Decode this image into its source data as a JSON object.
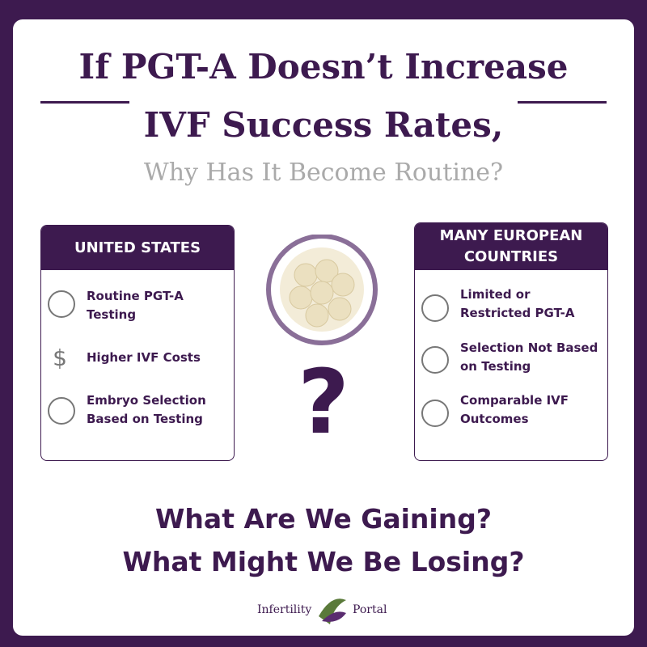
{
  "header": {
    "title_line1": "If PGT-A Doesn’t Increase",
    "title_line2": "IVF Success Rates,",
    "subtitle": "Why Has It Become Routine?"
  },
  "left_panel": {
    "heading": "UNITED STATES",
    "items": [
      "Routine PGT-A Testing",
      "Higher IVF Costs",
      "Embryo Selection Based on Testing"
    ]
  },
  "right_panel": {
    "heading": "MANY EUROPEAN COUNTRIES",
    "items": [
      "Limited or Restricted PGT-A",
      "Selection Not Based on Testing",
      "Comparable IVF Outcomes"
    ]
  },
  "center": {
    "symbol": "?"
  },
  "questions": [
    "What Are We Gaining?",
    "What Might We Be Losing?"
  ],
  "footer": {
    "brand_left": "Infertility",
    "brand_right": "Portal"
  }
}
